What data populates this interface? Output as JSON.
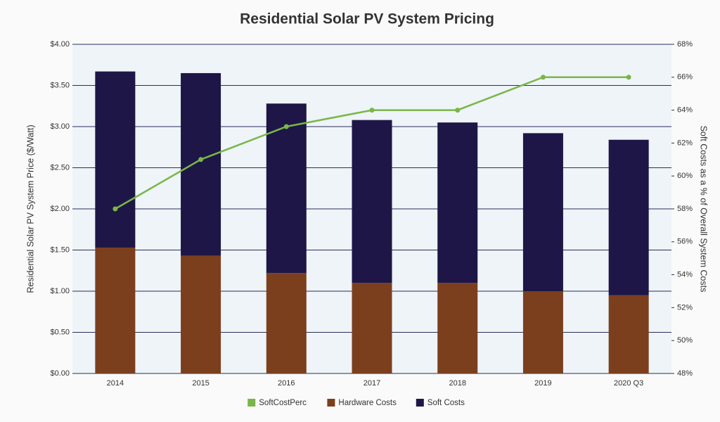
{
  "chart_data": {
    "type": "bar",
    "stacked": true,
    "title": "Residential Solar PV System Pricing",
    "y_label": "Residential Solar PV System Price ($/Watt)",
    "y2_label": "Soft Costs as a % of Overall System Costs",
    "categories": [
      "2014",
      "2015",
      "2016",
      "2017",
      "2018",
      "2019",
      "2020 Q3"
    ],
    "series": [
      {
        "name": "SoftCostPerc",
        "type": "line",
        "axis": "y2",
        "color": "#7ab648",
        "values": [
          58,
          61,
          63,
          64,
          64,
          66,
          66
        ]
      },
      {
        "name": "Hardware Costs",
        "type": "bar",
        "color": "#7b3f1e",
        "values": [
          1.53,
          1.43,
          1.22,
          1.1,
          1.1,
          1.0,
          0.95
        ]
      },
      {
        "name": "Soft Costs",
        "type": "bar",
        "color": "#1e1646",
        "values": [
          2.14,
          2.22,
          2.06,
          1.98,
          1.95,
          1.92,
          1.89
        ]
      }
    ],
    "ylim": [
      0,
      4
    ],
    "yticks": [
      {
        "value": 0,
        "label": "$0.00"
      },
      {
        "value": 0.5,
        "label": "$0.50"
      },
      {
        "value": 1,
        "label": "$1.00"
      },
      {
        "value": 1.5,
        "label": "$1.50"
      },
      {
        "value": 2,
        "label": "$2.00"
      },
      {
        "value": 2.5,
        "label": "$2.50"
      },
      {
        "value": 3,
        "label": "$3.00"
      },
      {
        "value": 3.5,
        "label": "$3.50"
      },
      {
        "value": 4,
        "label": "$4.00"
      }
    ],
    "y2lim": [
      48,
      68
    ],
    "y2ticks": [
      {
        "value": 48,
        "label": "48%"
      },
      {
        "value": 50,
        "label": "50%"
      },
      {
        "value": 52,
        "label": "52%"
      },
      {
        "value": 54,
        "label": "54%"
      },
      {
        "value": 56,
        "label": "56%"
      },
      {
        "value": 58,
        "label": "58%"
      },
      {
        "value": 60,
        "label": "60%"
      },
      {
        "value": 62,
        "label": "62%"
      },
      {
        "value": 64,
        "label": "64%"
      },
      {
        "value": 66,
        "label": "66%"
      },
      {
        "value": 68,
        "label": "68%"
      }
    ],
    "grid": true,
    "legend": "bottom"
  }
}
